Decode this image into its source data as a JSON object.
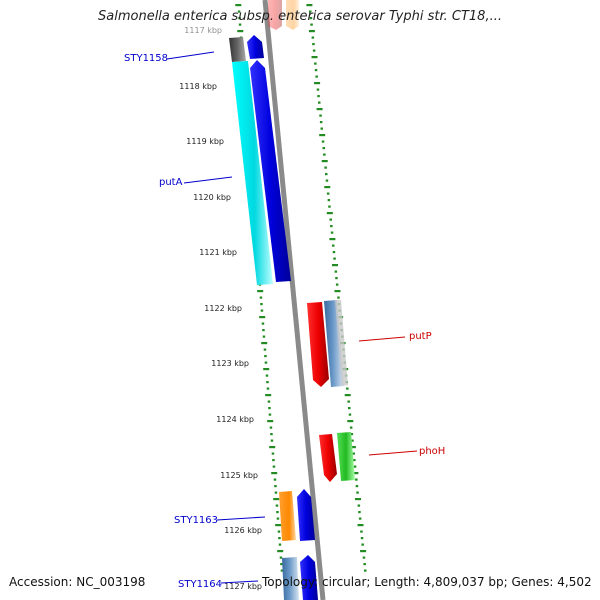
{
  "title": "Salmonella enterica subsp. enterica serovar Typhi str. CT18,...",
  "footer": {
    "accession": "Accession: NC_003198",
    "topology": "Topology: circular; Length: 4,809,037 bp; Genes: 4,502"
  },
  "ruler_labels": [
    "1117 kbp",
    "1118 kbp",
    "1119 kbp",
    "1120 kbp",
    "1121 kbp",
    "1122 kbp",
    "1123 kbp",
    "1124 kbp",
    "1125 kbp",
    "1126 kbp",
    "1127 kbp"
  ],
  "gene_labels": [
    "STY1158",
    "putA",
    "putP",
    "phoH",
    "STY1163",
    "STY1164"
  ],
  "colors": {
    "forward_label": "#0000cc",
    "reverse_label": "#cc0000",
    "tick": "#228b22",
    "backbone": "#8a8a8a",
    "cyan": "#00e5ee",
    "blue": "#0000ee",
    "red": "#ee0000",
    "orange": "#ff8c00",
    "green": "#33cc33",
    "steel": "#4f7fb0",
    "grey": "#555555"
  }
}
